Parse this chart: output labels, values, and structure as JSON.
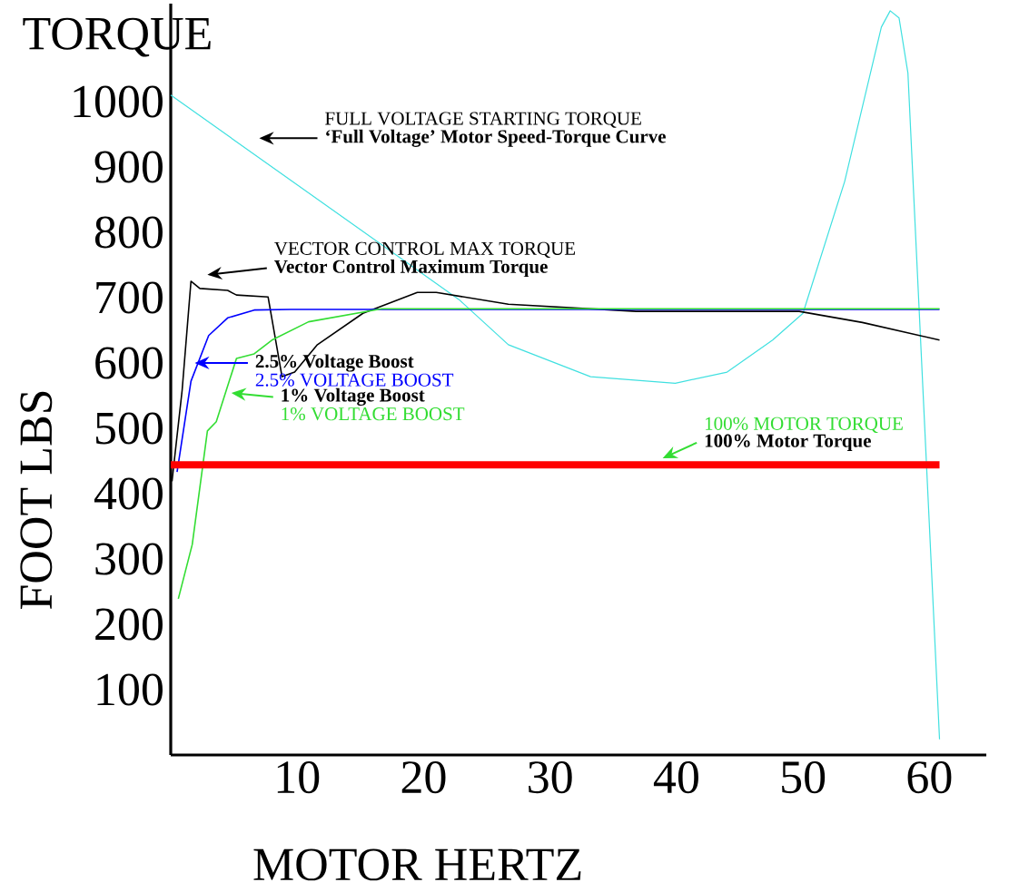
{
  "chart_data": {
    "type": "line",
    "title": "TORQUE",
    "ylabel": "FOOT LBS",
    "xlabel": "MOTOR HERTZ",
    "xlim": [
      0,
      64.5
    ],
    "ylim": [
      0,
      1150
    ],
    "xticks": [
      10,
      20,
      30,
      40,
      50,
      60
    ],
    "yticks": [
      100,
      200,
      300,
      400,
      500,
      600,
      700,
      800,
      900,
      1000
    ],
    "grid": false,
    "legend": false,
    "marker": "none",
    "line_style": "solid",
    "series": [
      {
        "color": "#40e0e0",
        "x": [
          0,
          22.8,
          26.7,
          33.2,
          39.9,
          44,
          47.6,
          50,
          53.3,
          56.2,
          56.9,
          57.6,
          58.3,
          60.8
        ],
        "values": [
          1010,
          697,
          628,
          579,
          569,
          586,
          635,
          676,
          878,
          1114,
          1139,
          1128,
          1044,
          24
        ]
      },
      {
        "color": "#000000",
        "x": [
          0.1,
          0.9,
          1.6,
          2.3,
          4.5,
          5.2,
          7.7,
          8.8,
          9.8,
          11.6,
          15.2,
          19.5,
          21,
          26.7,
          36.8,
          49.7,
          54.7,
          60.8
        ],
        "values": [
          419,
          558,
          725,
          714,
          711,
          704,
          701,
          579,
          586,
          628,
          676,
          708,
          708,
          690,
          679,
          679,
          662,
          635
        ]
      },
      {
        "color": "#0000ff",
        "x": [
          0.5,
          1.6,
          3,
          4.5,
          6.6,
          9.5,
          60.8
        ],
        "values": [
          433,
          572,
          642,
          669,
          681,
          682,
          682
        ]
      },
      {
        "color": "#33dd33",
        "x": [
          0.6,
          1.7,
          2.9,
          3.6,
          5.2,
          6.6,
          8,
          10.9,
          16.7,
          60.8
        ],
        "values": [
          239,
          322,
          496,
          510,
          607,
          614,
          635,
          663,
          683,
          683
        ]
      },
      {
        "color": "#ff0000",
        "x": [
          0,
          60.8
        ],
        "values": [
          444,
          444
        ]
      }
    ],
    "annotations": [
      "‘Full Voltage’ Motor Speed-Torque Curve",
      "FULL VOLTAGE STARTING TORQUE",
      "Vector Control Maximum Torque",
      "VECTOR CONTROL MAX TORQUE",
      "2.5% Voltage Boost",
      "2.5% VOLTAGE BOOST",
      "1% Voltage Boost",
      "1% VOLTAGE BOOST",
      "100% Motor Torque",
      "100% MOTOR TORQUE"
    ]
  }
}
